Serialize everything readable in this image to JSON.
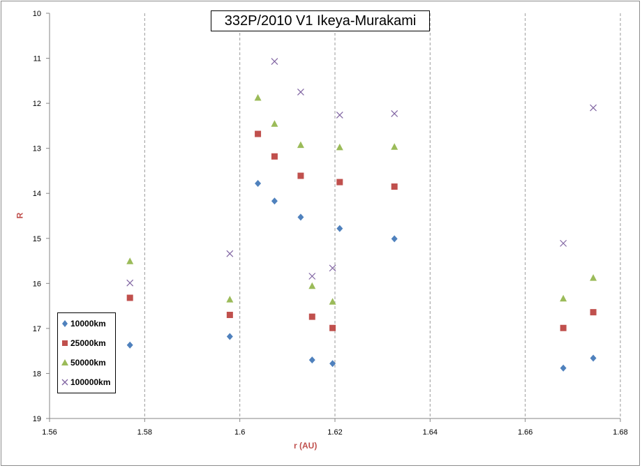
{
  "chart_data": {
    "type": "scatter",
    "title": "332P/2010 V1 Ikeya-Murakami",
    "xlabel": "r (AU)",
    "ylabel": "R",
    "xlim": [
      1.56,
      1.68
    ],
    "ylim": [
      10,
      19
    ],
    "y_inverted": true,
    "x_ticks": [
      "1.56",
      "1.58",
      "1.6",
      "1.62",
      "1.64",
      "1.66",
      "1.68"
    ],
    "y_ticks": [
      "10",
      "11",
      "12",
      "13",
      "14",
      "15",
      "16",
      "17",
      "18",
      "19"
    ],
    "grid": "vertical-dashed",
    "legend_position": "bottom-left",
    "series": [
      {
        "name": "10000km",
        "marker": "diamond",
        "color": "#4f81bd",
        "x": [
          1.5769,
          1.5979,
          1.6038,
          1.6073,
          1.6128,
          1.6152,
          1.6195,
          1.621,
          1.6325,
          1.668,
          1.6743
        ],
        "y": [
          17.37,
          17.18,
          13.78,
          14.17,
          14.53,
          17.7,
          17.78,
          14.78,
          15.01,
          17.88,
          17.66
        ]
      },
      {
        "name": "25000km",
        "marker": "square",
        "color": "#c0504d",
        "x": [
          1.5769,
          1.5979,
          1.6038,
          1.6073,
          1.6128,
          1.6152,
          1.6195,
          1.621,
          1.6325,
          1.668,
          1.6743
        ],
        "y": [
          16.32,
          16.7,
          12.68,
          13.18,
          13.61,
          16.74,
          16.99,
          13.75,
          13.85,
          16.99,
          16.64
        ]
      },
      {
        "name": "50000km",
        "marker": "triangle",
        "color": "#9bbb59",
        "x": [
          1.5769,
          1.5979,
          1.6038,
          1.6073,
          1.6128,
          1.6152,
          1.6195,
          1.621,
          1.6325,
          1.668,
          1.6743
        ],
        "y": [
          15.51,
          16.36,
          11.88,
          12.46,
          12.93,
          16.06,
          16.41,
          12.98,
          12.97,
          16.34,
          15.88
        ]
      },
      {
        "name": "100000km",
        "marker": "x",
        "color": "#8064a2",
        "x": [
          1.5769,
          1.5979,
          1.6073,
          1.6128,
          1.6152,
          1.6195,
          1.621,
          1.6325,
          1.668,
          1.6743
        ],
        "y": [
          15.99,
          15.34,
          11.07,
          11.75,
          15.84,
          15.66,
          12.26,
          12.23,
          15.11,
          12.1
        ]
      }
    ]
  }
}
